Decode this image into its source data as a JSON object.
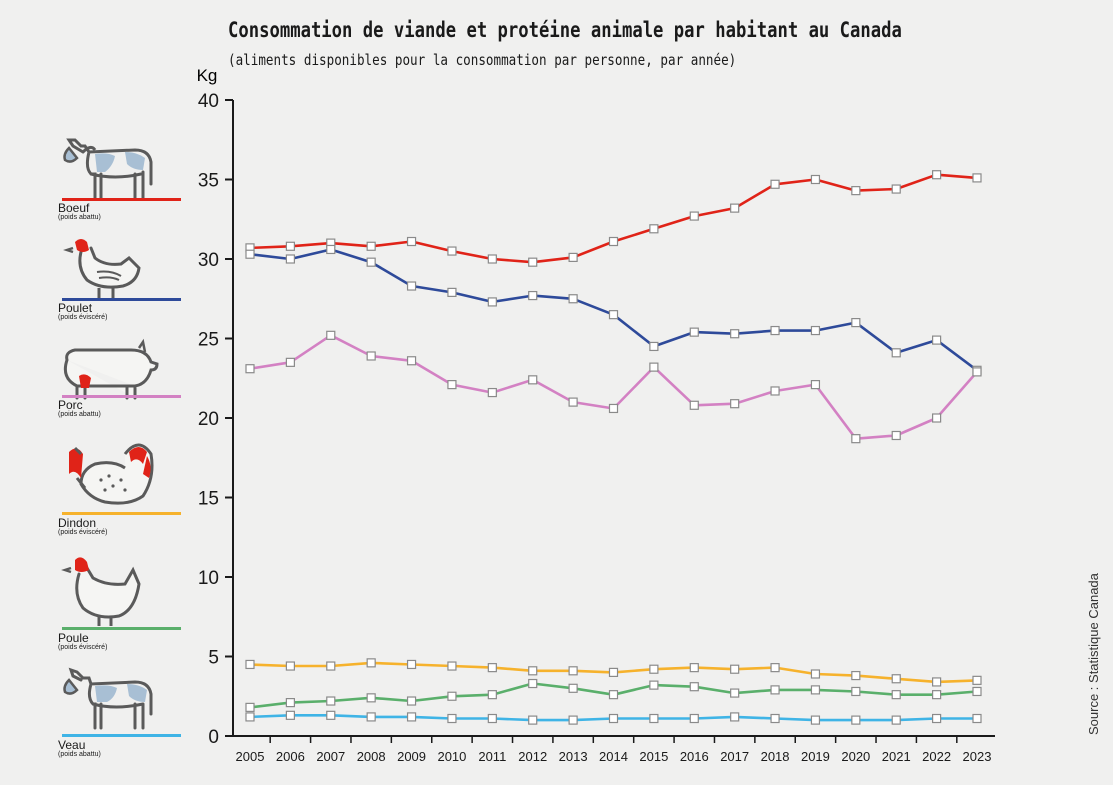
{
  "title": "Consommation de viande et protéine animale par habitant au Canada",
  "subtitle": "(aliments disponibles pour la consommation par personne, par année)",
  "source": "Source : Statistique Canada",
  "legend": [
    {
      "label": "Boeuf",
      "sub": "(poids abattu)",
      "color": "#e02318",
      "icon": "cow-icon"
    },
    {
      "label": "Poulet",
      "sub": "(poids éviscéré)",
      "color": "#2e4a9a",
      "icon": "chicken-icon"
    },
    {
      "label": "Porc",
      "sub": "(poids abattu)",
      "color": "#d381c3",
      "icon": "pig-icon"
    },
    {
      "label": "Dindon",
      "sub": "(poids éviscéré)",
      "color": "#f6b22c",
      "icon": "turkey-icon"
    },
    {
      "label": "Poule",
      "sub": "(poids éviscéré)",
      "color": "#5aaf6b",
      "icon": "hen-icon"
    },
    {
      "label": "Veau",
      "sub": "(poids abattu)",
      "color": "#3fb4e6",
      "icon": "calf-icon"
    }
  ],
  "chart_data": {
    "type": "line",
    "ylabel": "Kg",
    "ylim": [
      0,
      40
    ],
    "yticks": [
      0,
      5,
      10,
      15,
      20,
      25,
      30,
      35,
      40
    ],
    "x": [
      "2005",
      "2006",
      "2007",
      "2008",
      "2009",
      "2010",
      "2011",
      "2012",
      "2013",
      "2014",
      "2015",
      "2016",
      "2017",
      "2018",
      "2019",
      "2020",
      "2021",
      "2022",
      "2023"
    ],
    "series": [
      {
        "name": "Boeuf",
        "color": "#e02318",
        "values": [
          30.7,
          30.8,
          31.0,
          30.8,
          31.1,
          30.5,
          30.0,
          29.8,
          30.1,
          31.1,
          31.9,
          32.7,
          33.2,
          34.7,
          35.0,
          34.3,
          34.4,
          35.3,
          35.1
        ]
      },
      {
        "name": "Poulet",
        "color": "#2e4a9a",
        "values": [
          30.3,
          30.0,
          30.6,
          29.8,
          28.3,
          27.9,
          27.3,
          27.7,
          27.5,
          26.5,
          24.5,
          25.4,
          25.3,
          25.5,
          25.5,
          26.0,
          24.1,
          24.9,
          23.0
        ]
      },
      {
        "name": "Porc",
        "color": "#d381c3",
        "values": [
          23.1,
          23.5,
          25.2,
          23.9,
          23.6,
          22.1,
          21.6,
          22.4,
          21.0,
          20.6,
          23.2,
          20.8,
          20.9,
          21.7,
          22.1,
          18.7,
          18.9,
          20.0,
          22.9
        ]
      },
      {
        "name": "Dindon",
        "color": "#f6b22c",
        "values": [
          4.5,
          4.4,
          4.4,
          4.6,
          4.5,
          4.4,
          4.3,
          4.1,
          4.1,
          4.0,
          4.2,
          4.3,
          4.2,
          4.3,
          3.9,
          3.8,
          3.6,
          3.4,
          3.5
        ]
      },
      {
        "name": "Poule",
        "color": "#5aaf6b",
        "values": [
          1.8,
          2.1,
          2.2,
          2.4,
          2.2,
          2.5,
          2.6,
          3.3,
          3.0,
          2.6,
          3.2,
          3.1,
          2.7,
          2.9,
          2.9,
          2.8,
          2.6,
          2.6,
          2.8
        ]
      },
      {
        "name": "Veau",
        "color": "#3fb4e6",
        "values": [
          1.2,
          1.3,
          1.3,
          1.2,
          1.2,
          1.1,
          1.1,
          1.0,
          1.0,
          1.1,
          1.1,
          1.1,
          1.2,
          1.1,
          1.0,
          1.0,
          1.0,
          1.1,
          1.1
        ]
      }
    ]
  }
}
